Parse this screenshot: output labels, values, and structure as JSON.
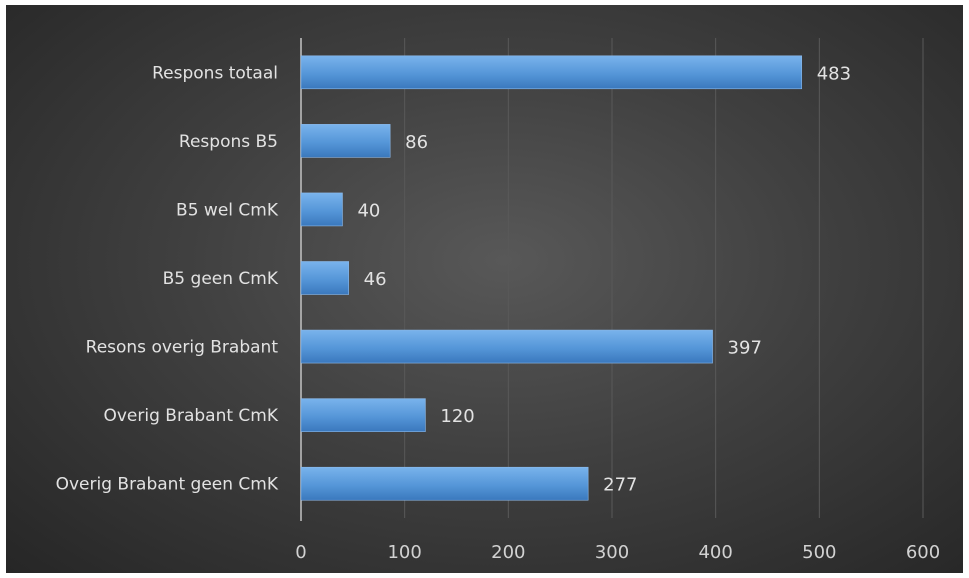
{
  "chart_data": {
    "type": "bar",
    "orientation": "horizontal",
    "categories": [
      "Respons totaal",
      "Respons B5",
      "B5 wel CmK",
      "B5 geen CmK",
      "Resons overig Brabant",
      "Overig Brabant CmK",
      "Overig Brabant geen CmK"
    ],
    "values": [
      483,
      86,
      40,
      46,
      397,
      120,
      277
    ],
    "xlim": [
      0,
      600
    ],
    "xticks": [
      0,
      100,
      200,
      300,
      400,
      500,
      600
    ],
    "grid": "vertical",
    "legend": "none",
    "title": "",
    "xlabel": "",
    "ylabel": ""
  },
  "colors": {
    "bar": "#5a9bdd",
    "background": "#404040",
    "text": "#e2e2e2"
  }
}
